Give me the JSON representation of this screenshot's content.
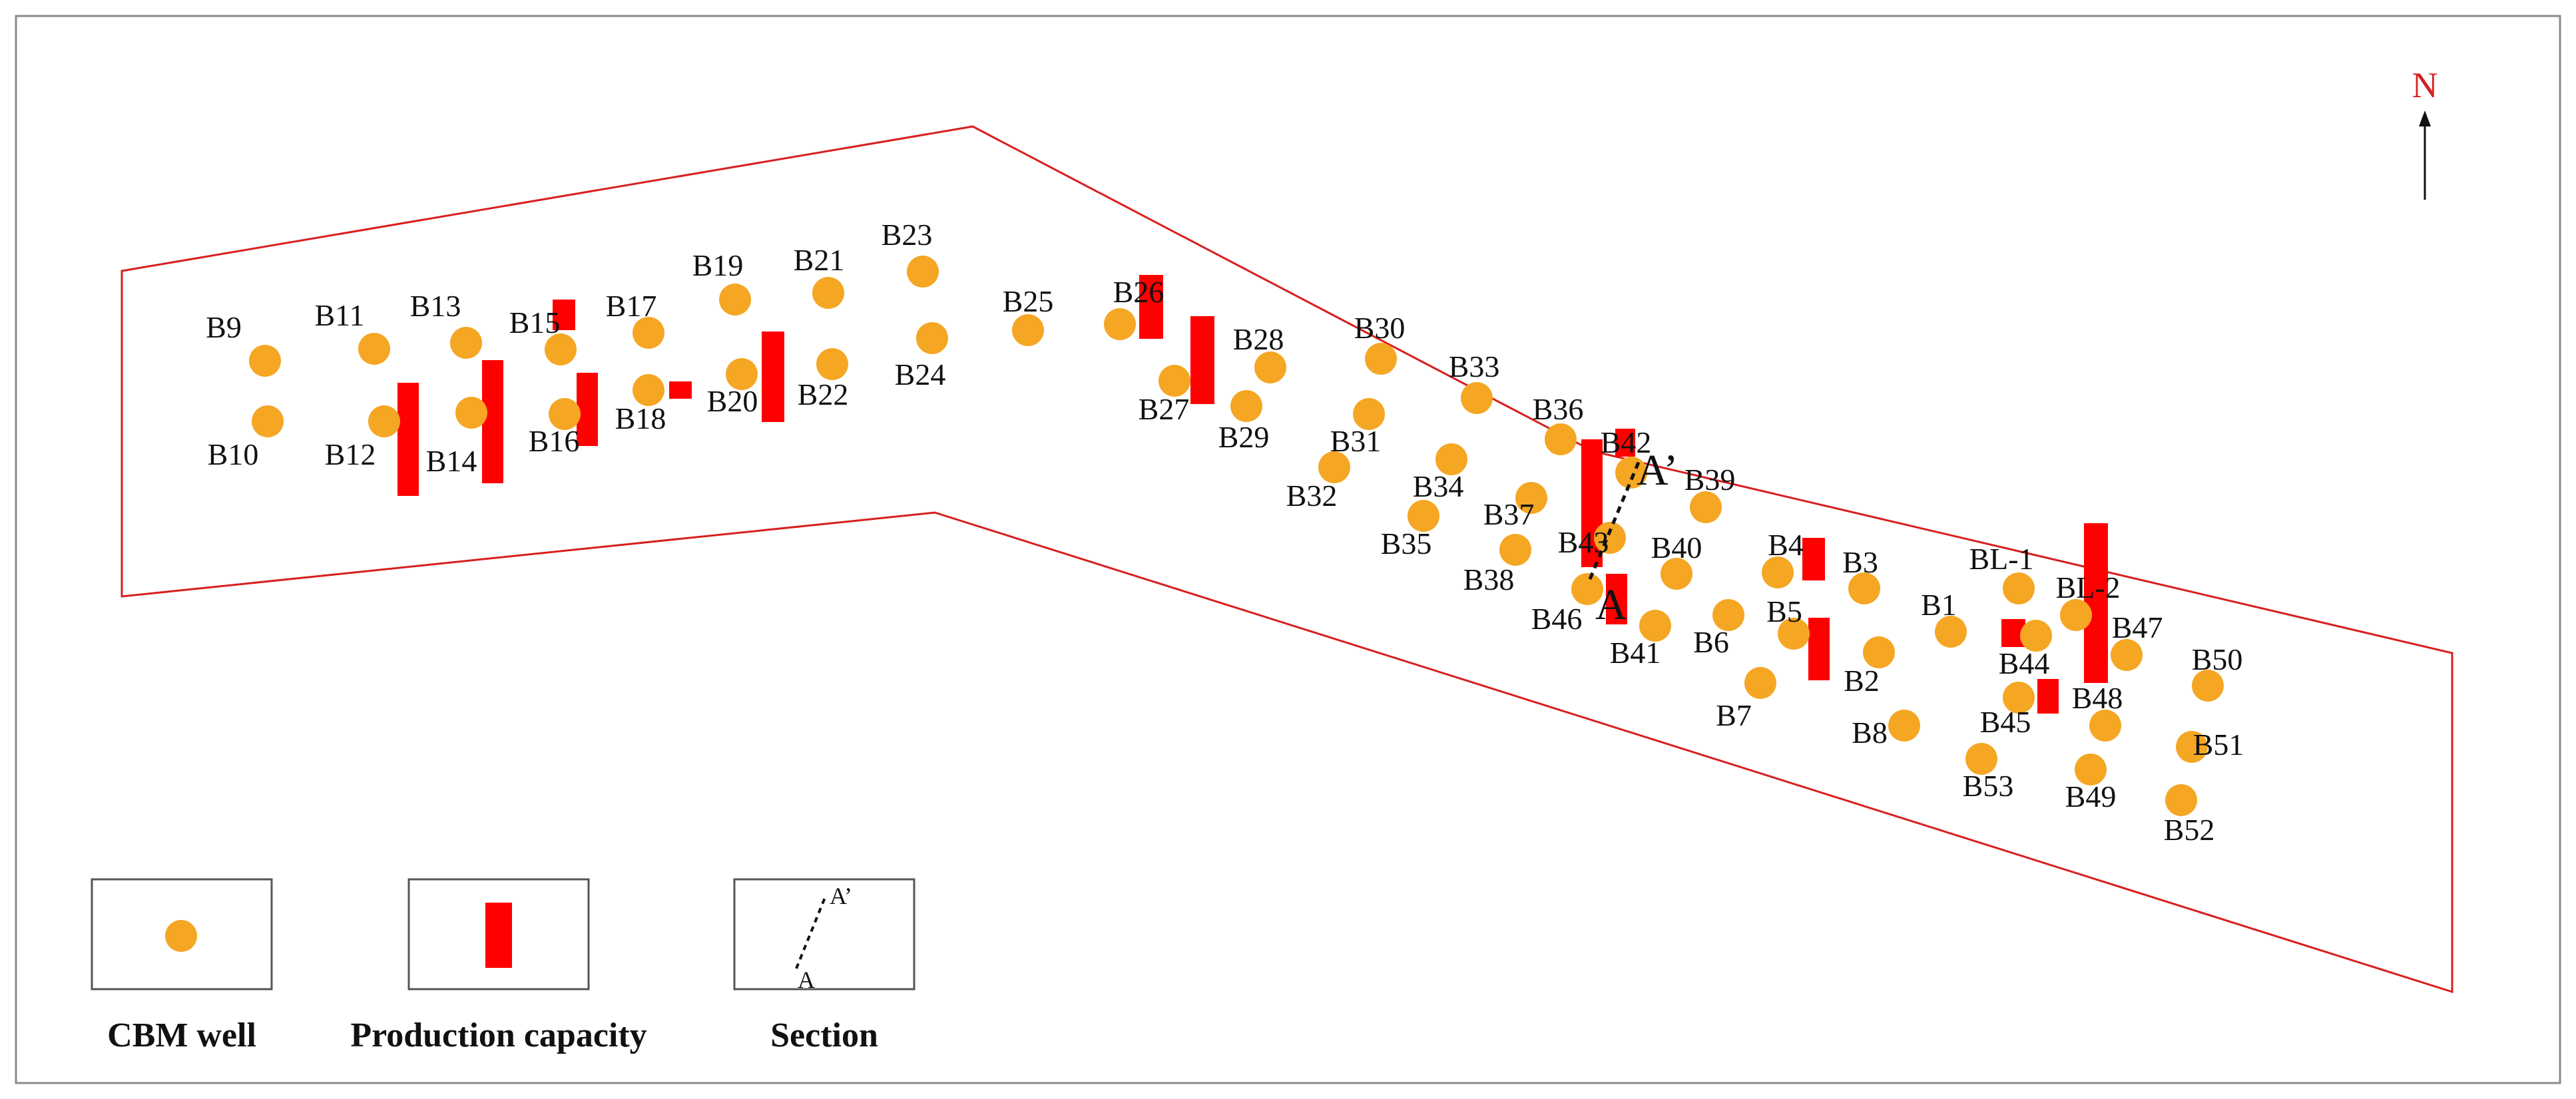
{
  "north_label": "N",
  "legend": {
    "well_label": "CBM well",
    "capacity_label": "Production capacity",
    "section_label": "Section",
    "section_start": "A",
    "section_end": "A’"
  },
  "section_line": {
    "start_label": "A",
    "end_label": "A’"
  },
  "colors": {
    "well": "#f5a623",
    "capacity": "#ff0000",
    "boundary": "#d81f1f",
    "north": "#d81f1f"
  },
  "wells": [
    {
      "name": "B9"
    },
    {
      "name": "B10"
    },
    {
      "name": "B11"
    },
    {
      "name": "B12"
    },
    {
      "name": "B13"
    },
    {
      "name": "B14"
    },
    {
      "name": "B15"
    },
    {
      "name": "B16"
    },
    {
      "name": "B17"
    },
    {
      "name": "B18"
    },
    {
      "name": "B19"
    },
    {
      "name": "B20"
    },
    {
      "name": "B21"
    },
    {
      "name": "B22"
    },
    {
      "name": "B23"
    },
    {
      "name": "B24"
    },
    {
      "name": "B25"
    },
    {
      "name": "B26"
    },
    {
      "name": "B27"
    },
    {
      "name": "B28"
    },
    {
      "name": "B29"
    },
    {
      "name": "B30"
    },
    {
      "name": "B31"
    },
    {
      "name": "B32"
    },
    {
      "name": "B33"
    },
    {
      "name": "B34"
    },
    {
      "name": "B35"
    },
    {
      "name": "B36"
    },
    {
      "name": "B37"
    },
    {
      "name": "B38"
    },
    {
      "name": "B42"
    },
    {
      "name": "B43"
    },
    {
      "name": "B46"
    },
    {
      "name": "B39"
    },
    {
      "name": "B40"
    },
    {
      "name": "B41"
    },
    {
      "name": "B4"
    },
    {
      "name": "B3"
    },
    {
      "name": "B5"
    },
    {
      "name": "B6"
    },
    {
      "name": "B2"
    },
    {
      "name": "B7"
    },
    {
      "name": "B8"
    },
    {
      "name": "B1"
    },
    {
      "name": "BL-1"
    },
    {
      "name": "BL-2"
    },
    {
      "name": "B44"
    },
    {
      "name": "B45"
    },
    {
      "name": "B47"
    },
    {
      "name": "B48"
    },
    {
      "name": "B49"
    },
    {
      "name": "B53"
    },
    {
      "name": "B50"
    },
    {
      "name": "B51"
    },
    {
      "name": "B52"
    }
  ]
}
